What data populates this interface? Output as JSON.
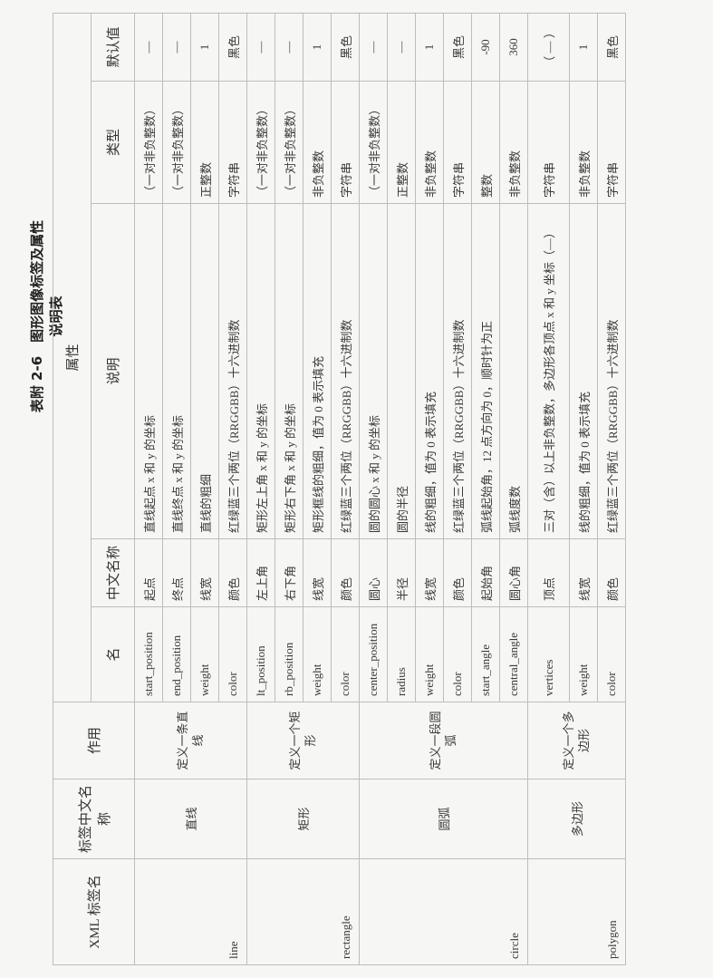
{
  "title": "表附 2-6　图形图像标签及属性说明表",
  "header": {
    "xml": "XML 标签名",
    "cn_name": "标签中文名称",
    "purpose": "作用",
    "attributes": "属性",
    "name": "名",
    "attr_cn": "中文名称",
    "desc": "说明",
    "type": "类型",
    "default": "默认值"
  },
  "groups": [
    {
      "xml": "line",
      "cn": "直线",
      "purpose": "定义一条直线",
      "attrs": [
        [
          "start_position",
          "起点",
          "直线起点 x 和 y 的坐标",
          "（一对非负整数）",
          "—"
        ],
        [
          "end_position",
          "终点",
          "直线终点 x 和 y 的坐标",
          "（一对非负整数）",
          "—"
        ],
        [
          "weight",
          "线宽",
          "直线的粗细",
          "正整数",
          "1"
        ],
        [
          "color",
          "颜色",
          "红绿蓝三个两位（RRGGBB）十六进制数",
          "字符串",
          "黑色"
        ]
      ]
    },
    {
      "xml": "rectangle",
      "cn": "矩形",
      "purpose": "定义一个矩形",
      "attrs": [
        [
          "lt_position",
          "左上角",
          "矩形左上角 x 和 y 的坐标",
          "（一对非负整数）",
          "—"
        ],
        [
          "rb_position",
          "右下角",
          "矩形右下角 x 和 y 的坐标",
          "（一对非负整数）",
          "—"
        ],
        [
          "weight",
          "线宽",
          "矩形框线的粗细，值为 0 表示填充",
          "非负整数",
          "1"
        ],
        [
          "color",
          "颜色",
          "红绿蓝三个两位（RRGGBB）十六进制数",
          "字符串",
          "黑色"
        ]
      ]
    },
    {
      "xml": "circle",
      "cn": "圆弧",
      "purpose": "定义一段圆弧",
      "attrs": [
        [
          "center_position",
          "圆心",
          "圆的圆心 x 和 y 的坐标",
          "（一对非负整数）",
          "—"
        ],
        [
          "radius",
          "半径",
          "圆的半径",
          "正整数",
          "—"
        ],
        [
          "weight",
          "线宽",
          "线的粗细，值为 0 表示填充",
          "非负整数",
          "1"
        ],
        [
          "color",
          "颜色",
          "红绿蓝三个两位（RRGGBB）十六进制数",
          "字符串",
          "黑色"
        ],
        [
          "start_angle",
          "起始角",
          "弧线起始角，12 点方向为 0，顺时针为正",
          "整数",
          "-90"
        ],
        [
          "central_angle",
          "圆心角",
          "弧线度数",
          "非负整数",
          "360"
        ]
      ]
    },
    {
      "xml": "polygon",
      "cn": "多边形",
      "purpose": "定义一个多边形",
      "attrs": [
        [
          "vertices",
          "顶点",
          "三对（含）以上非负整数，多边形各顶点 x 和 y 坐标（—）",
          "字符串",
          "（ — ）"
        ],
        [
          "weight",
          "线宽",
          "线的粗细，值为 0 表示填充",
          "非负整数",
          "1"
        ],
        [
          "color",
          "颜色",
          "红绿蓝三个两位（RRGGBB）十六进制数",
          "字符串",
          "黑色"
        ]
      ]
    }
  ]
}
